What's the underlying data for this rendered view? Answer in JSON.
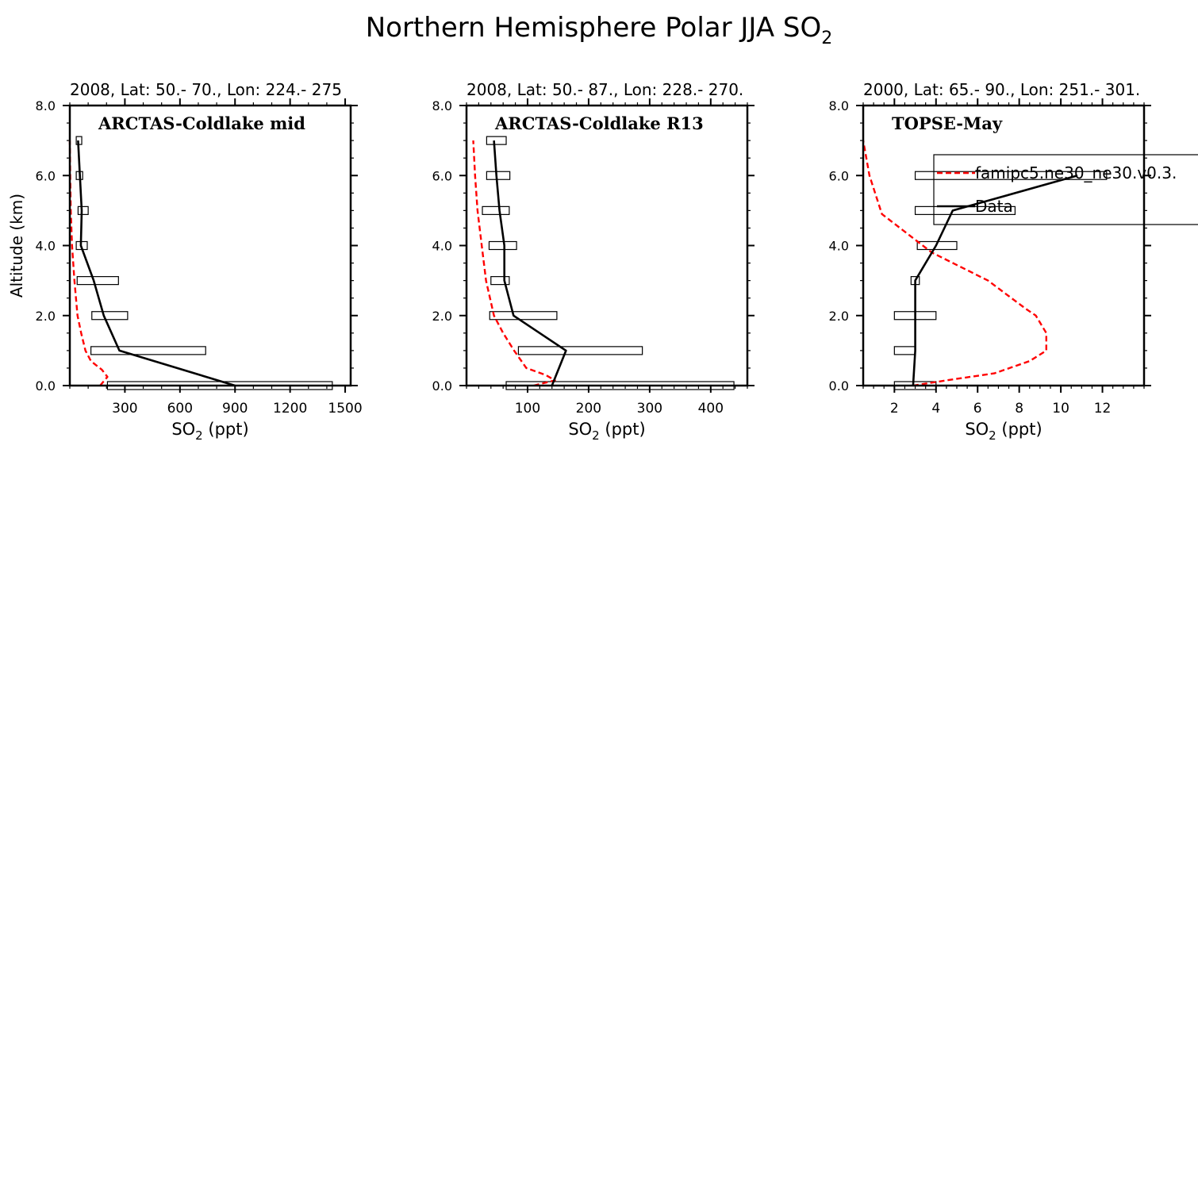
{
  "figure": {
    "title_main": "Northern Hemisphere Polar JJA SO",
    "title_sub": "2"
  },
  "chart_data": [
    {
      "type": "line",
      "label": "ARCTAS-Coldlake mid",
      "subtitle": "2008, Lat:  50.- 70., Lon: 224.- 275",
      "xlabel_main": "SO",
      "xlabel_sub": "2",
      "xlabel_tail": " (ppt)",
      "ylabel": "Altitude (km)",
      "xlim": [
        0,
        1530
      ],
      "ylim": [
        0,
        8
      ],
      "xticks": [
        300,
        600,
        900,
        1200,
        1500
      ],
      "xtick_labels": [
        "300",
        "600",
        "900",
        "1200",
        "1500"
      ],
      "xminor": 100,
      "yticks": [
        0,
        2,
        4,
        6,
        8
      ],
      "ytick_labels": [
        "0.0",
        "2.0",
        "4.0",
        "6.0",
        "8.0"
      ],
      "yminor": 0.5,
      "series": [
        {
          "name": "Data",
          "color": "#000000",
          "dash": "solid",
          "x": [
            900,
            270,
            185,
            130,
            60,
            65,
            55,
            45
          ],
          "y": [
            0,
            1,
            2,
            3,
            4,
            5,
            6,
            7
          ]
        },
        {
          "name": "famipc5.ne30_ne30.v0.3.",
          "color": "#ff0000",
          "dash": "dashed",
          "x": [
            165,
            205,
            175,
            115,
            85,
            62,
            42,
            25,
            12,
            5,
            2,
            0
          ],
          "y": [
            0,
            0.25,
            0.45,
            0.7,
            1.0,
            1.5,
            2.0,
            3.0,
            4.0,
            5.0,
            6.0,
            7.0
          ]
        }
      ],
      "ranges": [
        {
          "y": 0,
          "min": 205,
          "max": 1430
        },
        {
          "y": 1,
          "min": 115,
          "max": 740
        },
        {
          "y": 2,
          "min": 120,
          "max": 315
        },
        {
          "y": 3,
          "min": 40,
          "max": 265
        },
        {
          "y": 4,
          "min": 35,
          "max": 95
        },
        {
          "y": 5,
          "min": 45,
          "max": 100
        },
        {
          "y": 6,
          "min": 35,
          "max": 70
        },
        {
          "y": 7,
          "min": 35,
          "max": 65
        }
      ]
    },
    {
      "type": "line",
      "label": "ARCTAS-Coldlake R13",
      "subtitle": "2008, Lat:  50.- 87., Lon: 228.- 270.",
      "xlabel_main": "SO",
      "xlabel_sub": "2",
      "xlabel_tail": " (ppt)",
      "xlim": [
        0,
        460
      ],
      "ylim": [
        0,
        8
      ],
      "xticks": [
        100,
        200,
        300,
        400
      ],
      "xtick_labels": [
        "100",
        "200",
        "300",
        "400"
      ],
      "xminor": 20,
      "yticks": [
        0,
        2,
        4,
        6,
        8
      ],
      "ytick_labels": [
        "0.0",
        "2.0",
        "4.0",
        "6.0",
        "8.0"
      ],
      "yminor": 0.5,
      "series": [
        {
          "name": "Data",
          "color": "#000000",
          "dash": "solid",
          "x": [
            140,
            163,
            77,
            62,
            62,
            54,
            49,
            45
          ],
          "y": [
            0,
            1,
            2,
            3,
            4,
            5,
            6,
            7
          ]
        },
        {
          "name": "famipc5.ne30_ne30.v0.3.",
          "color": "#ff0000",
          "dash": "dashed",
          "x": [
            110,
            145,
            130,
            98,
            78,
            60,
            45,
            32,
            25,
            18,
            14,
            11
          ],
          "y": [
            0,
            0.15,
            0.3,
            0.5,
            1.0,
            1.5,
            2.0,
            3.0,
            4.0,
            5.0,
            6.0,
            7.0
          ]
        }
      ],
      "ranges": [
        {
          "y": 0,
          "min": 65,
          "max": 438
        },
        {
          "y": 1,
          "min": 85,
          "max": 288
        },
        {
          "y": 2,
          "min": 38,
          "max": 148
        },
        {
          "y": 3,
          "min": 40,
          "max": 70
        },
        {
          "y": 4,
          "min": 37,
          "max": 82
        },
        {
          "y": 5,
          "min": 26,
          "max": 70
        },
        {
          "y": 6,
          "min": 33,
          "max": 71
        },
        {
          "y": 7,
          "min": 33,
          "max": 65
        }
      ]
    },
    {
      "type": "line",
      "label": "TOPSE-May",
      "subtitle": "2000, Lat: 65.- 90., Lon: 251.- 301.",
      "xlabel_main": "SO",
      "xlabel_sub": "2",
      "xlabel_tail": " (ppt)",
      "xlim": [
        0.5,
        14.0
      ],
      "ylim": [
        0,
        8
      ],
      "xticks": [
        2,
        4,
        6,
        8,
        10,
        12
      ],
      "xtick_labels": [
        "2",
        "4",
        "6",
        "8",
        "10",
        "12"
      ],
      "xminor": 0.5,
      "yticks": [
        0,
        2,
        4,
        6,
        8
      ],
      "ytick_labels": [
        "0.0",
        "2.0",
        "4.0",
        "6.0",
        "8.0"
      ],
      "yminor": 0.5,
      "series": [
        {
          "name": "Data",
          "color": "#000000",
          "dash": "solid",
          "x": [
            2.9,
            3.0,
            3.0,
            3.0,
            4.0,
            4.8,
            10.8
          ],
          "y": [
            0,
            1,
            2,
            3,
            4,
            5,
            6
          ]
        },
        {
          "name": "famipc5.ne30_ne30.v0.3.",
          "color": "#ff0000",
          "dash": "dashed",
          "x": [
            2.9,
            4.5,
            6.8,
            8.5,
            9.3,
            9.3,
            8.8,
            8.3,
            6.5,
            3.8,
            1.4,
            0.8,
            0.5
          ],
          "y": [
            0,
            0.15,
            0.35,
            0.7,
            1.0,
            1.5,
            2.0,
            2.2,
            3.0,
            3.8,
            4.9,
            6.0,
            7.0
          ]
        }
      ],
      "ranges": [
        {
          "y": 0,
          "min": 2.0,
          "max": 4.0
        },
        {
          "y": 1,
          "min": 2.0,
          "max": 3.0
        },
        {
          "y": 2,
          "min": 2.0,
          "max": 4.0
        },
        {
          "y": 3,
          "min": 2.8,
          "max": 3.2
        },
        {
          "y": 4,
          "min": 3.1,
          "max": 5.0
        },
        {
          "y": 5,
          "min": 3.0,
          "max": 7.8
        },
        {
          "y": 6,
          "min": 3.0,
          "max": 12.2
        }
      ]
    }
  ],
  "legend": {
    "entries": [
      {
        "label": "famipc5.ne30_ne30.v0.3.",
        "color": "#ff0000",
        "dash": "dashed"
      },
      {
        "label": "Data",
        "color": "#000000",
        "dash": "solid"
      }
    ]
  }
}
